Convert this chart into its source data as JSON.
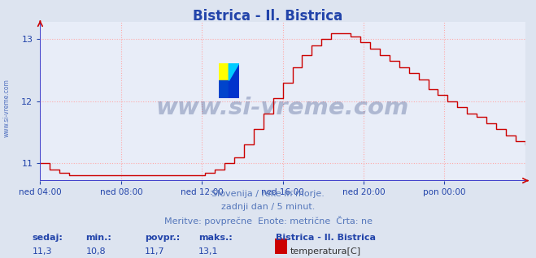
{
  "title": "Bistrica - Il. Bistrica",
  "title_color": "#2244aa",
  "bg_color": "#dde4f0",
  "plot_bg_color": "#e8edf8",
  "grid_color": "#ffaaaa",
  "line_color": "#cc0000",
  "axis_line_color": "#4444cc",
  "tick_color": "#2244aa",
  "watermark": "www.si-vreme.com",
  "watermark_color": "#1a3070",
  "watermark_alpha": 0.28,
  "subtitle1": "Slovenija / reke in morje.",
  "subtitle2": "zadnji dan / 5 minut.",
  "subtitle3": "Meritve: povprečne  Enote: metrične  Črta: ne",
  "subtitle_color": "#5577bb",
  "footer_labels": [
    "sedaj:",
    "min.:",
    "povpr.:",
    "maks.:"
  ],
  "footer_values": [
    "11,3",
    "10,8",
    "11,7",
    "13,1"
  ],
  "footer_color": "#2244aa",
  "legend_title": "Bistrica - Il. Bistrica",
  "legend_entry": "temperatura[C]",
  "legend_swatch_color": "#cc0000",
  "ylim_min": 10.72,
  "ylim_max": 13.28,
  "yticks": [
    11,
    12,
    13
  ],
  "xtick_labels": [
    "ned 04:00",
    "ned 08:00",
    "ned 12:00",
    "ned 16:00",
    "ned 20:00",
    "pon 00:00"
  ],
  "sidewatermark": "www.si-vreme.com",
  "sidewatermark_color": "#4466bb",
  "icon_colors": [
    "#ffff00",
    "#00ccff",
    "#0033cc",
    "#00aaff"
  ],
  "data_y": [
    11.0,
    10.9,
    10.85,
    10.8,
    10.8,
    10.8,
    10.8,
    10.8,
    10.8,
    10.8,
    10.8,
    10.8,
    10.8,
    10.8,
    10.8,
    10.8,
    10.8,
    10.85,
    10.9,
    11.0,
    11.1,
    11.3,
    11.55,
    11.8,
    12.05,
    12.3,
    12.55,
    12.75,
    12.9,
    13.0,
    13.1,
    13.1,
    13.05,
    12.95,
    12.85,
    12.75,
    12.65,
    12.55,
    12.45,
    12.35,
    12.2,
    12.1,
    12.0,
    11.9,
    11.8,
    11.75,
    11.65,
    11.55,
    11.45,
    11.35,
    11.3
  ]
}
